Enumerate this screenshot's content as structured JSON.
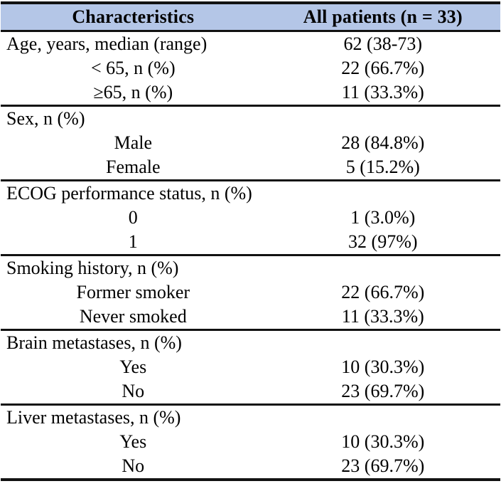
{
  "colors": {
    "header_bg": "#b4c6e7",
    "rule": "#121212",
    "text": "#000000"
  },
  "table": {
    "header": {
      "col1": "Characteristics",
      "col2": "All patients (n = 33)"
    },
    "rows": [
      {
        "label": "Age, years, median (range)",
        "value": "62 (38-73)",
        "type": "category"
      },
      {
        "label": "< 65, n (%)",
        "value": "22 (66.7%)",
        "type": "sub"
      },
      {
        "label": "≥65, n (%)",
        "value": "11 (33.3%)",
        "type": "sub"
      },
      {
        "label": "Sex, n (%)",
        "value": "",
        "type": "category"
      },
      {
        "label": "Male",
        "value": "28 (84.8%)",
        "type": "sub"
      },
      {
        "label": "Female",
        "value": "5 (15.2%)",
        "type": "sub"
      },
      {
        "label": "ECOG performance status, n (%)",
        "value": "",
        "type": "category"
      },
      {
        "label": "0",
        "value": "1 (3.0%)",
        "type": "sub"
      },
      {
        "label": "1",
        "value": "32 (97%)",
        "type": "sub"
      },
      {
        "label": "Smoking history, n (%)",
        "value": "",
        "type": "category"
      },
      {
        "label": "Former smoker",
        "value": "22 (66.7%)",
        "type": "sub"
      },
      {
        "label": "Never smoked",
        "value": "11 (33.3%)",
        "type": "sub"
      },
      {
        "label": "Brain metastases, n (%)",
        "value": "",
        "type": "category"
      },
      {
        "label": "Yes",
        "value": "10 (30.3%)",
        "type": "sub"
      },
      {
        "label": "No",
        "value": "23 (69.7%)",
        "type": "sub"
      },
      {
        "label": "Liver metastases, n (%)",
        "value": "",
        "type": "category"
      },
      {
        "label": "Yes",
        "value": "10 (30.3%)",
        "type": "sub"
      },
      {
        "label": "No",
        "value": "23 (69.7%)",
        "type": "sub"
      }
    ]
  }
}
